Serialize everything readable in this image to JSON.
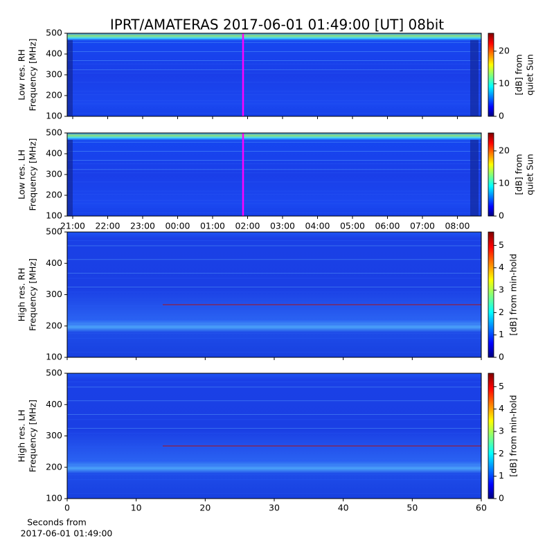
{
  "title": "IPRT/AMATERAS 2017-06-01 01:49:00 [UT]   08bit",
  "chart_data": [
    {
      "type": "spectrogram",
      "ylabel": [
        "Low res. RH",
        "Frequency [MHz]"
      ],
      "ylim": [
        100,
        500
      ],
      "yticks": [
        100,
        200,
        300,
        400,
        500
      ],
      "colorbar": {
        "label": [
          "[dB] from",
          "quiet Sun"
        ],
        "lim": [
          0,
          25.5
        ],
        "ticks": [
          0,
          10,
          20
        ]
      }
    },
    {
      "type": "spectrogram",
      "ylabel": [
        "Low res. LH",
        "Frequency [MHz]"
      ],
      "ylim": [
        100,
        500
      ],
      "yticks": [
        100,
        200,
        300,
        400,
        500
      ],
      "colorbar": {
        "label": [
          "[dB] from",
          "quiet Sun"
        ],
        "lim": [
          0,
          25.5
        ],
        "ticks": [
          0,
          10,
          20
        ]
      },
      "time_labels": [
        "21:00",
        "22:00",
        "23:00",
        "00:00",
        "01:00",
        "02:00",
        "03:00",
        "04:00",
        "05:00",
        "06:00",
        "07:00",
        "08:00"
      ]
    },
    {
      "type": "spectrogram",
      "ylabel": [
        "High res. RH",
        "Frequency [MHz]"
      ],
      "ylim": [
        100,
        500
      ],
      "yticks": [
        100,
        200,
        300,
        400,
        500
      ],
      "colorbar": {
        "label": [
          "[dB] from min-hold"
        ],
        "lim": [
          0,
          5.6
        ],
        "ticks": [
          0,
          1,
          2,
          3,
          4,
          5
        ]
      },
      "xlim": [
        0,
        60
      ],
      "xticks": [
        0,
        10,
        20,
        30,
        40,
        50,
        60
      ]
    },
    {
      "type": "spectrogram",
      "ylabel": [
        "High res. LH",
        "Frequency [MHz]"
      ],
      "ylim": [
        100,
        500
      ],
      "yticks": [
        100,
        200,
        300,
        400,
        500
      ],
      "colorbar": {
        "label": [
          "[dB] from min-hold"
        ],
        "lim": [
          0,
          5.6
        ],
        "ticks": [
          0,
          1,
          2,
          3,
          4,
          5
        ]
      },
      "xlim": [
        0,
        60
      ],
      "xticks": [
        0,
        10,
        20,
        30,
        40,
        50,
        60
      ],
      "xlabel": [
        "Seconds from",
        "2017-06-01 01:49:00"
      ]
    }
  ]
}
